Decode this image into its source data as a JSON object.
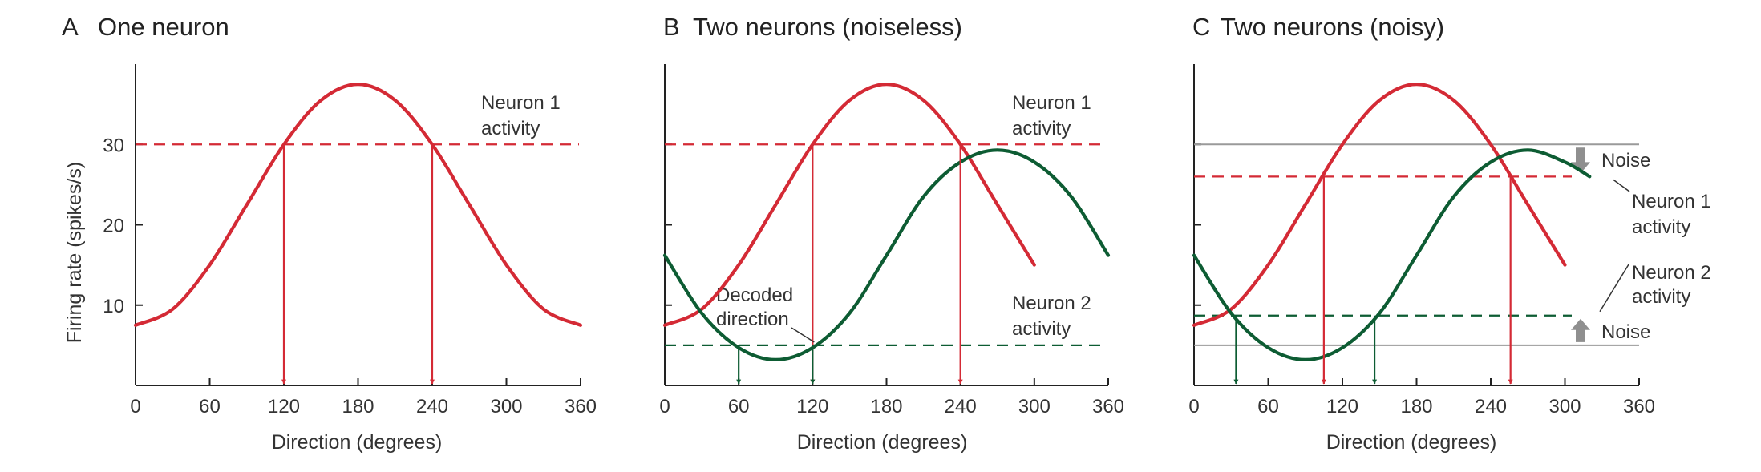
{
  "colors": {
    "neuron1": "#d42a35",
    "neuron2": "#0d5c33",
    "axis": "#222222",
    "noise_line": "#9a9a9a",
    "noise_arrow": "#8f8f8f"
  },
  "chart_data": [
    {
      "type": "line",
      "panel_letter": "A",
      "title": "One neuron",
      "xlabel": "Direction (degrees)",
      "ylabel": "Firing rate (spikes/s)",
      "xlim": [
        0,
        360
      ],
      "ylim": [
        0,
        40
      ],
      "xticks": [
        0,
        60,
        120,
        180,
        240,
        300,
        360
      ],
      "yticks": [
        10,
        20,
        30
      ],
      "series": [
        {
          "name": "Neuron 1",
          "x": [
            0,
            30,
            60,
            90,
            120,
            150,
            180,
            210,
            240,
            270,
            300,
            330,
            360
          ],
          "y": [
            7.5,
            9.5,
            15.0,
            22.5,
            30.0,
            35.5,
            37.5,
            35.5,
            30.0,
            22.5,
            15.0,
            9.5,
            7.5
          ]
        }
      ],
      "levels": [
        {
          "series": "Neuron 1",
          "y": 30,
          "label_lines": [
            "Neuron 1",
            "activity"
          ]
        }
      ],
      "drops": [
        {
          "x": 120,
          "y": 30,
          "series": "Neuron 1"
        },
        {
          "x": 240,
          "y": 30,
          "series": "Neuron 1"
        }
      ]
    },
    {
      "type": "line",
      "panel_letter": "B",
      "title": "Two neurons (noiseless)",
      "xlabel": "Direction (degrees)",
      "ylabel": "",
      "xlim": [
        0,
        360
      ],
      "ylim": [
        0,
        40
      ],
      "xticks": [
        0,
        60,
        120,
        180,
        240,
        300,
        360
      ],
      "yticks": [
        10,
        20,
        30
      ],
      "series": [
        {
          "name": "Neuron 1",
          "x": [
            0,
            30,
            60,
            90,
            120,
            150,
            180,
            210,
            240,
            270,
            300
          ],
          "y": [
            7.5,
            9.5,
            15.0,
            22.5,
            30.0,
            35.5,
            37.5,
            35.5,
            30.0,
            22.5,
            15.0
          ]
        },
        {
          "name": "Neuron 2",
          "x": [
            0,
            30,
            60,
            90,
            120,
            150,
            180,
            210,
            240,
            270,
            300,
            330,
            360
          ],
          "y": [
            16.2,
            9.0,
            4.7,
            3.2,
            4.7,
            9.0,
            16.2,
            23.5,
            27.8,
            29.3,
            27.8,
            23.5,
            16.2
          ]
        }
      ],
      "levels": [
        {
          "series": "Neuron 1",
          "y": 30,
          "label_lines": [
            "Neuron 1",
            "activity"
          ]
        },
        {
          "series": "Neuron 2",
          "y": 5,
          "label_lines": [
            "Neuron 2",
            "activity"
          ]
        }
      ],
      "drops": [
        {
          "x": 120,
          "y": 30,
          "series": "Neuron 1"
        },
        {
          "x": 240,
          "y": 30,
          "series": "Neuron 1"
        },
        {
          "x": 60,
          "y": 5,
          "series": "Neuron 2"
        },
        {
          "x": 120,
          "y": 5,
          "series": "Neuron 2"
        }
      ],
      "annotation": {
        "label_lines": [
          "Decoded",
          "direction"
        ],
        "x": 120,
        "y": 5
      }
    },
    {
      "type": "line",
      "panel_letter": "C",
      "title": "Two neurons (noisy)",
      "xlabel": "Direction (degrees)",
      "ylabel": "",
      "xlim": [
        0,
        360
      ],
      "ylim": [
        0,
        40
      ],
      "xticks": [
        0,
        60,
        120,
        180,
        240,
        300,
        360
      ],
      "yticks": [
        10,
        20,
        30
      ],
      "series": [
        {
          "name": "Neuron 1",
          "x": [
            0,
            30,
            60,
            90,
            120,
            150,
            180,
            210,
            240,
            270,
            300
          ],
          "y": [
            7.5,
            9.5,
            15.0,
            22.5,
            30.0,
            35.5,
            37.5,
            35.5,
            30.0,
            22.5,
            15.0
          ]
        },
        {
          "name": "Neuron 2",
          "x": [
            0,
            30,
            60,
            90,
            120,
            150,
            180,
            210,
            240,
            270,
            300,
            320
          ],
          "y": [
            16.2,
            9.0,
            4.7,
            3.2,
            4.7,
            9.0,
            16.2,
            23.5,
            27.8,
            29.3,
            27.8,
            26.0
          ]
        }
      ],
      "true_levels": [
        30,
        5
      ],
      "levels": [
        {
          "series": "Neuron 1",
          "y": 26,
          "label_lines": [
            "Neuron 1",
            "activity"
          ]
        },
        {
          "series": "Neuron 2",
          "y": 8.7,
          "label_lines": [
            "Neuron 2",
            "activity"
          ]
        }
      ],
      "noise_label": "Noise",
      "drops": [
        {
          "x": 105,
          "y": 26,
          "series": "Neuron 1"
        },
        {
          "x": 256,
          "y": 26,
          "series": "Neuron 1"
        },
        {
          "x": 34,
          "y": 8.7,
          "series": "Neuron 2"
        },
        {
          "x": 146,
          "y": 8.7,
          "series": "Neuron 2"
        }
      ]
    }
  ]
}
